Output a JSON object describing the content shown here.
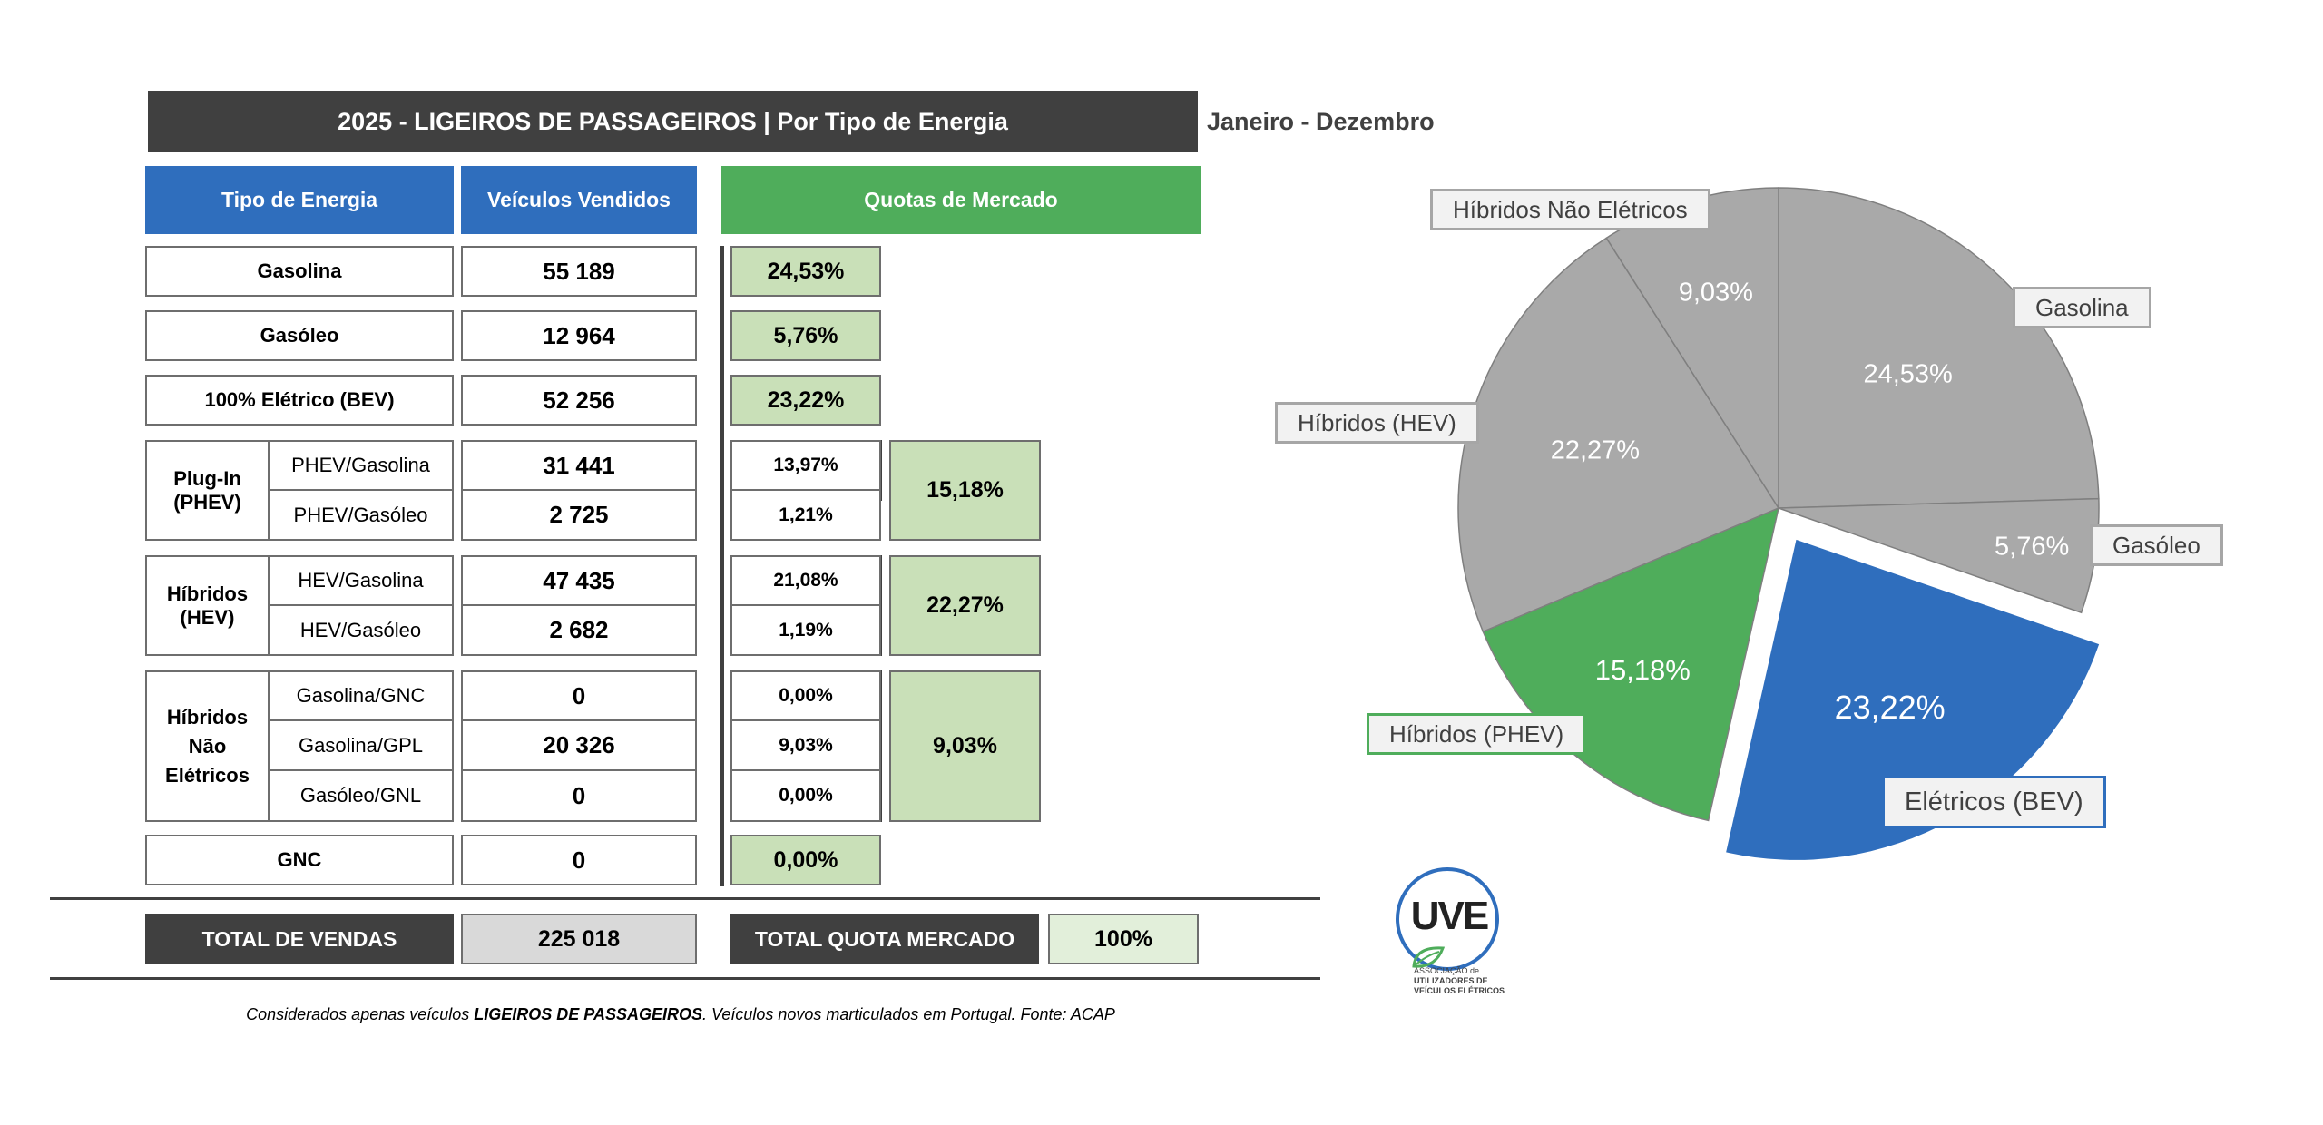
{
  "header": {
    "title": "2025 - LIGEIROS DE PASSAGEIROS | Por Tipo de Energia",
    "period": "Janeiro - Dezembro"
  },
  "columns": {
    "tipo": "Tipo de Energia",
    "vendidos": "Veículos Vendidos",
    "quotas": "Quotas de Mercado"
  },
  "rows": {
    "gasolina": {
      "label": "Gasolina",
      "value": "55 189",
      "share": "24,53%"
    },
    "gasoleo": {
      "label": "Gasóleo",
      "value": "12 964",
      "share": "5,76%"
    },
    "bev": {
      "label": "100% Elétrico (BEV)",
      "value": "52 256",
      "share": "23,22%"
    },
    "gnc": {
      "label": "GNC",
      "value": "0",
      "share": "0,00%"
    }
  },
  "groups": {
    "phev": {
      "label": "Plug-In (PHEV)",
      "total_share": "15,18%",
      "sub": [
        {
          "label": "PHEV/Gasolina",
          "value": "31 441",
          "share": "13,97%"
        },
        {
          "label": "PHEV/Gasóleo",
          "value": "2 725",
          "share": "1,21%"
        }
      ]
    },
    "hev": {
      "label": "Híbridos (HEV)",
      "total_share": "22,27%",
      "sub": [
        {
          "label": "HEV/Gasolina",
          "value": "47 435",
          "share": "21,08%"
        },
        {
          "label": "HEV/Gasóleo",
          "value": "2 682",
          "share": "1,19%"
        }
      ]
    },
    "hne": {
      "label": "Híbridos Não Elétricos",
      "total_share": "9,03%",
      "sub": [
        {
          "label": "Gasolina/GNC",
          "value": "0",
          "share": "0,00%"
        },
        {
          "label": "Gasolina/GPL",
          "value": "20 326",
          "share": "9,03%"
        },
        {
          "label": "Gasóleo/GNL",
          "value": "0",
          "share": "0,00%"
        }
      ]
    }
  },
  "totals": {
    "sales_label": "TOTAL DE VENDAS",
    "sales_value": "225 018",
    "share_label": "TOTAL QUOTA MERCADO",
    "share_value": "100%"
  },
  "footnote": {
    "pre": "Considerados apenas veículos ",
    "bold": "LIGEIROS DE PASSAGEIROS",
    "post": ". Veículos novos marticulados em Portugal. Fonte: ACAP"
  },
  "logo": {
    "mark": "UVE",
    "line1": "ASSOCIAÇÃO de",
    "line2": "UTILIZADORES DE",
    "line3": "VEÍCULOS ELÉTRICOS"
  },
  "colors": {
    "dark": "#404040",
    "blue": "#2f6ebd",
    "green": "#4fad5b",
    "light_green": "#c9e0b8",
    "grey_slice": "#a9a9a9"
  },
  "chart_data": {
    "type": "pie",
    "title": "",
    "slices": [
      {
        "label": "Gasolina",
        "value": 24.53,
        "display": "24,53%",
        "color": "#a9a9a9"
      },
      {
        "label": "Gasóleo",
        "value": 5.76,
        "display": "5,76%",
        "color": "#a9a9a9"
      },
      {
        "label": "Elétricos (BEV)",
        "value": 23.22,
        "display": "23,22%",
        "color": "#2f6ebd",
        "exploded": true
      },
      {
        "label": "Híbridos (PHEV)",
        "value": 15.18,
        "display": "15,18%",
        "color": "#4fad5b"
      },
      {
        "label": "Híbridos (HEV)",
        "value": 22.27,
        "display": "22,27%",
        "color": "#a9a9a9"
      },
      {
        "label": "Híbridos Não Elétricos",
        "value": 9.03,
        "display": "9,03%",
        "color": "#a9a9a9"
      }
    ]
  }
}
